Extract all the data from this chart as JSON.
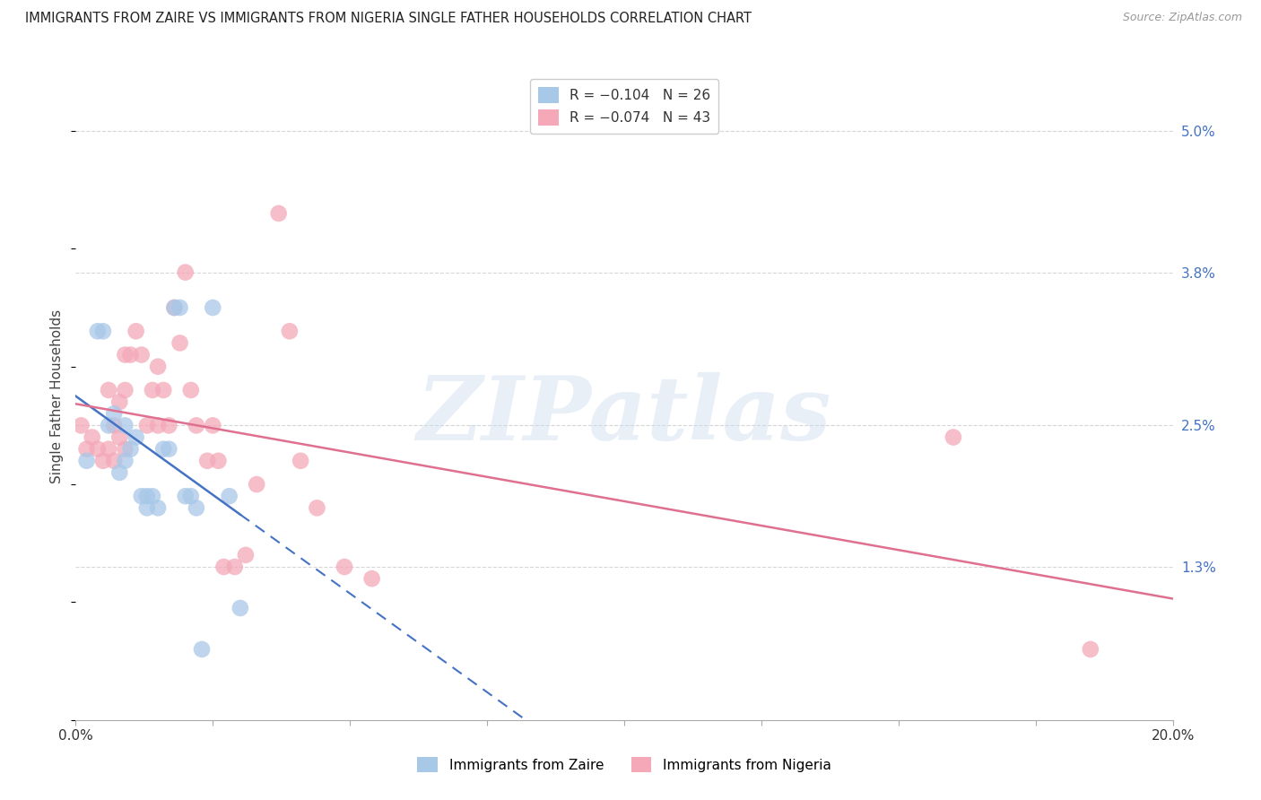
{
  "title": "IMMIGRANTS FROM ZAIRE VS IMMIGRANTS FROM NIGERIA SINGLE FATHER HOUSEHOLDS CORRELATION CHART",
  "source": "Source: ZipAtlas.com",
  "ylabel": "Single Father Households",
  "watermark": "ZIPatlas",
  "zaire_color": "#a8c8e8",
  "nigeria_color": "#f4a8b8",
  "zaire_line_color": "#4472c4",
  "nigeria_line_color": "#e07090",
  "background_color": "#ffffff",
  "grid_color": "#cccccc",
  "title_color": "#222222",
  "right_axis_color": "#4472c4",
  "xmin": 0.0,
  "xmax": 0.2,
  "ymin": 0.0,
  "ymax": 0.055,
  "zaire_R": -0.104,
  "zaire_N": 26,
  "nigeria_R": -0.074,
  "nigeria_N": 43,
  "right_ytick_vals": [
    0.0,
    0.013,
    0.025,
    0.038,
    0.05
  ],
  "right_ytick_labels": [
    "",
    "1.3%",
    "2.5%",
    "3.8%",
    "5.0%"
  ],
  "zaire_x": [
    0.002,
    0.004,
    0.005,
    0.006,
    0.007,
    0.008,
    0.009,
    0.009,
    0.01,
    0.011,
    0.012,
    0.013,
    0.013,
    0.014,
    0.015,
    0.016,
    0.017,
    0.018,
    0.019,
    0.02,
    0.021,
    0.022,
    0.023,
    0.025,
    0.028,
    0.03
  ],
  "zaire_y": [
    0.022,
    0.033,
    0.033,
    0.025,
    0.026,
    0.021,
    0.022,
    0.025,
    0.023,
    0.024,
    0.019,
    0.018,
    0.019,
    0.019,
    0.018,
    0.023,
    0.023,
    0.035,
    0.035,
    0.019,
    0.019,
    0.018,
    0.006,
    0.035,
    0.019,
    0.0095
  ],
  "nigeria_x": [
    0.001,
    0.002,
    0.003,
    0.004,
    0.005,
    0.006,
    0.006,
    0.007,
    0.007,
    0.008,
    0.008,
    0.009,
    0.009,
    0.009,
    0.01,
    0.011,
    0.012,
    0.013,
    0.014,
    0.015,
    0.015,
    0.016,
    0.017,
    0.018,
    0.019,
    0.02,
    0.021,
    0.022,
    0.024,
    0.025,
    0.026,
    0.027,
    0.029,
    0.031,
    0.033,
    0.037,
    0.039,
    0.041,
    0.044,
    0.049,
    0.054,
    0.16,
    0.185
  ],
  "nigeria_y": [
    0.025,
    0.023,
    0.024,
    0.023,
    0.022,
    0.023,
    0.028,
    0.022,
    0.025,
    0.024,
    0.027,
    0.023,
    0.028,
    0.031,
    0.031,
    0.033,
    0.031,
    0.025,
    0.028,
    0.03,
    0.025,
    0.028,
    0.025,
    0.035,
    0.032,
    0.038,
    0.028,
    0.025,
    0.022,
    0.025,
    0.022,
    0.013,
    0.013,
    0.014,
    0.02,
    0.043,
    0.033,
    0.022,
    0.018,
    0.013,
    0.012,
    0.024,
    0.006
  ],
  "legend_zaire_text": "R = −0.104   N = 26",
  "legend_nigeria_text": "R = −0.074   N = 43",
  "bottom_legend_zaire": "Immigrants from Zaire",
  "bottom_legend_nigeria": "Immigrants from Nigeria"
}
